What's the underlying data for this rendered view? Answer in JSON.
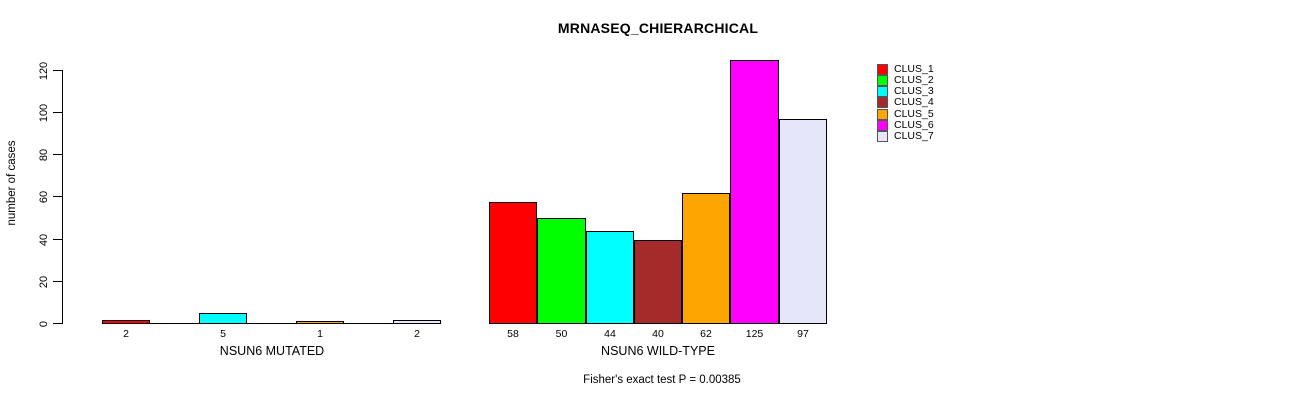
{
  "chart_data": {
    "type": "bar",
    "title": "MRNASEQ_CHIERARCHICAL",
    "xlabel": "",
    "ylabel": "number of cases",
    "ylim": [
      0,
      130
    ],
    "yticks": [
      0,
      20,
      40,
      60,
      80,
      100,
      120
    ],
    "grid": false,
    "legend_position": "right",
    "categories": [
      "CLUS_1",
      "CLUS_2",
      "CLUS_3",
      "CLUS_4",
      "CLUS_5",
      "CLUS_6",
      "CLUS_7"
    ],
    "colors": [
      "#FF0000",
      "#00FF00",
      "#00FFFF",
      "#A52A2A",
      "#FFA500",
      "#FF00FF",
      "#E6E6FA"
    ],
    "groups": [
      {
        "label": "NSUN6 MUTATED",
        "values": [
          2,
          0,
          5,
          0,
          1,
          0,
          2
        ],
        "bar_labels": [
          "2",
          "",
          "5",
          "",
          "1",
          "",
          "2"
        ]
      },
      {
        "label": "NSUN6 WILD-TYPE",
        "values": [
          58,
          50,
          44,
          40,
          62,
          125,
          97
        ],
        "bar_labels": [
          "58",
          "50",
          "44",
          "40",
          "62",
          "125",
          "97"
        ]
      }
    ],
    "annotation": "Fisher's exact test P = 0.00385",
    "legend": [
      {
        "label": "CLUS_1",
        "color": "#FF0000"
      },
      {
        "label": "CLUS_2",
        "color": "#00FF00"
      },
      {
        "label": "CLUS_3",
        "color": "#00FFFF"
      },
      {
        "label": "CLUS_4",
        "color": "#A52A2A"
      },
      {
        "label": "CLUS_5",
        "color": "#FFA500"
      },
      {
        "label": "CLUS_6",
        "color": "#FF00FF"
      },
      {
        "label": "CLUS_7",
        "color": "#E6E6FA"
      }
    ]
  }
}
